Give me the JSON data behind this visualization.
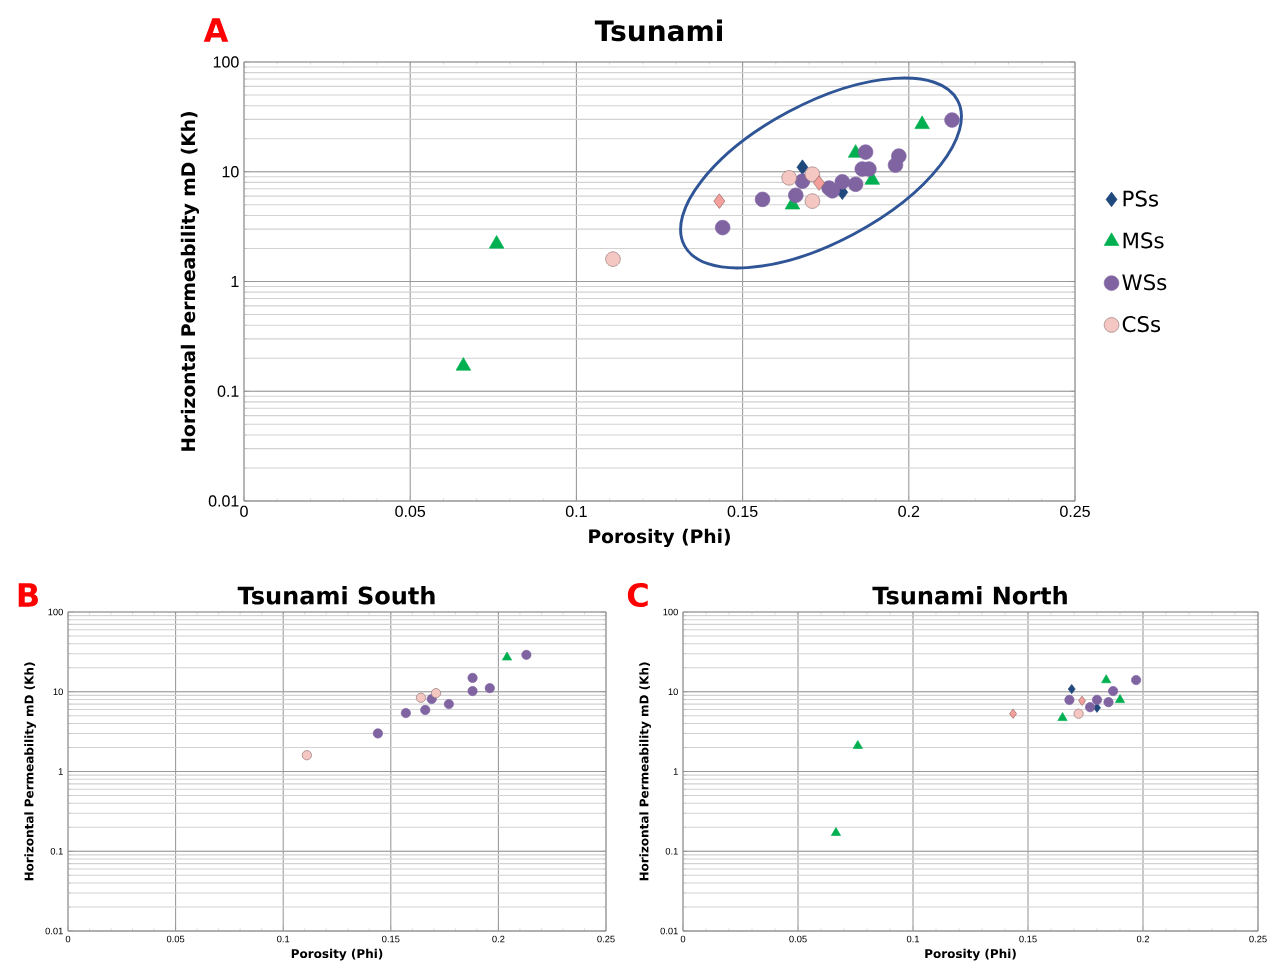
{
  "chart_data": [
    {
      "type": "scatter",
      "title": "Tsunami",
      "xlabel": "Porosity (Phi)",
      "ylabel": "Horizontal Permeability mD (Kh)",
      "annotations": [
        "A"
      ],
      "log": "y",
      "grid": true,
      "legend": "right",
      "xlim": [
        0,
        0.25
      ],
      "xticks": [
        0,
        0.05,
        0.1,
        0.15,
        0.2,
        0.25
      ],
      "ylim": [
        0.01,
        100
      ],
      "yticks": [
        0.01,
        0.1,
        1,
        10,
        100
      ],
      "series": [
        {
          "name": "PSs",
          "color": "#1f497d",
          "marker": "diamond",
          "x": [
            0.168,
            0.18
          ],
          "values": [
            11,
            6.5
          ]
        },
        {
          "name": "MSs",
          "color": "#00b050",
          "marker": "triangle",
          "x": [
            0.076,
            0.066,
            0.165,
            0.184,
            0.189,
            0.204
          ],
          "values": [
            2.2,
            0.17,
            5,
            14.8,
            8.4,
            27
          ]
        },
        {
          "name": "WSs",
          "color": "#8064a2",
          "marker": "circle",
          "x": [
            0.144,
            0.156,
            0.166,
            0.168,
            0.176,
            0.177,
            0.18,
            0.184,
            0.187,
            0.186,
            0.188,
            0.196,
            0.197,
            0.213
          ],
          "values": [
            3.1,
            5.6,
            6.1,
            8.2,
            7.1,
            6.7,
            8.1,
            7.7,
            15.1,
            10.6,
            10.6,
            11.5,
            13.9,
            29.6
          ]
        },
        {
          "name": "CSs",
          "color": "#f4c7c3",
          "marker": "circle",
          "x": [
            0.111,
            0.164,
            0.171,
            0.171
          ],
          "values": [
            1.6,
            8.8,
            9.5,
            5.4
          ]
        },
        {
          "color": "#f4a09c",
          "marker": "diamond",
          "x": [
            0.143,
            0.173
          ],
          "values": [
            5.4,
            7.9
          ]
        }
      ]
    },
    {
      "type": "scatter",
      "title": "Tsunami South",
      "xlabel": "Porosity (Phi)",
      "ylabel": "Horizontal Permeability mD (Kh)",
      "annotations": [
        "B"
      ],
      "log": "y",
      "grid": true,
      "xlim": [
        0,
        0.25
      ],
      "xticks": [
        0,
        0.05,
        0.1,
        0.15,
        0.2,
        0.25
      ],
      "ylim": [
        0.01,
        100
      ],
      "yticks": [
        0.01,
        0.1,
        1,
        10,
        100
      ],
      "series": [
        {
          "color": "#00b050",
          "marker": "triangle",
          "x": [
            0.204
          ],
          "values": [
            27
          ]
        },
        {
          "color": "#8064a2",
          "marker": "circle",
          "x": [
            0.144,
            0.157,
            0.166,
            0.169,
            0.177,
            0.188,
            0.188,
            0.196,
            0.213
          ],
          "values": [
            3.0,
            5.4,
            5.9,
            8.1,
            7.0,
            14.9,
            10.2,
            11.1,
            29
          ]
        },
        {
          "color": "#f4c7c3",
          "marker": "circle",
          "x": [
            0.111,
            0.164,
            0.171
          ],
          "values": [
            1.6,
            8.4,
            9.6
          ]
        }
      ]
    },
    {
      "type": "scatter",
      "title": "Tsunami North",
      "xlabel": "Porosity (Phi)",
      "ylabel": "Horizontal Permeability mD (Kh)",
      "annotations": [
        "C"
      ],
      "log": "y",
      "grid": true,
      "xlim": [
        0,
        0.25
      ],
      "xticks": [
        0,
        0.05,
        0.1,
        0.15,
        0.2,
        0.25
      ],
      "ylim": [
        0.01,
        100
      ],
      "yticks": [
        0.01,
        0.1,
        1,
        10,
        100
      ],
      "series": [
        {
          "color": "#1f497d",
          "marker": "diamond",
          "x": [
            0.169,
            0.18
          ],
          "values": [
            10.8,
            6.3
          ]
        },
        {
          "color": "#00b050",
          "marker": "triangle",
          "x": [
            0.076,
            0.0665,
            0.165,
            0.184,
            0.19
          ],
          "values": [
            2.1,
            0.17,
            4.7,
            14,
            7.9
          ]
        },
        {
          "color": "#8064a2",
          "marker": "circle",
          "x": [
            0.168,
            0.177,
            0.18,
            0.185,
            0.187,
            0.197
          ],
          "values": [
            7.9,
            6.4,
            7.9,
            7.4,
            10.2,
            14
          ]
        },
        {
          "color": "#f4c7c3",
          "marker": "circle",
          "x": [
            0.172
          ],
          "values": [
            5.3
          ]
        },
        {
          "color": "#f4a09c",
          "marker": "diamond",
          "x": [
            0.1435,
            0.1735
          ],
          "values": [
            5.3,
            7.7
          ]
        }
      ]
    }
  ]
}
